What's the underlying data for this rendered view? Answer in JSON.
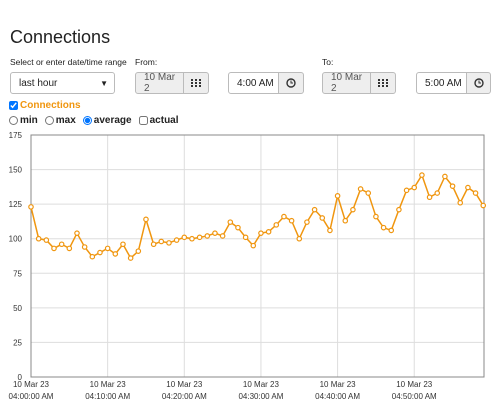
{
  "header": {
    "title": "Connections"
  },
  "form": {
    "range_label": "Select or enter date/time range",
    "range_value": "last hour",
    "from_label": "From:",
    "from_date": "10 Mar 2",
    "from_time": "4:00 AM",
    "to_label": "To:",
    "to_date": "10 Mar 2",
    "to_time": "5:00 AM"
  },
  "series_toggle": {
    "label": "Connections",
    "checked": true
  },
  "modes": {
    "options": [
      "min",
      "max",
      "average",
      "actual"
    ],
    "selected": "average"
  },
  "chart_data": {
    "type": "line",
    "x": [
      0,
      1,
      2,
      3,
      4,
      5,
      6,
      7,
      8,
      9,
      10,
      11,
      12,
      13,
      14,
      15,
      16,
      17,
      18,
      19,
      20,
      21,
      22,
      23,
      24,
      25,
      26,
      27,
      28,
      29,
      30,
      31,
      32,
      33,
      34,
      35,
      36,
      37,
      38,
      39,
      40,
      41,
      42,
      43,
      44,
      45,
      46,
      47,
      48,
      49,
      50,
      51,
      52,
      53,
      54,
      55,
      56,
      57,
      58,
      59
    ],
    "series": [
      {
        "name": "Connections",
        "color": "#f0960f",
        "values": [
          123,
          100,
          99,
          93,
          96,
          93,
          104,
          94,
          87,
          90,
          93,
          89,
          96,
          86,
          91,
          114,
          96,
          98,
          97,
          99,
          101,
          100,
          101,
          102,
          104,
          102,
          112,
          108,
          101,
          95,
          104,
          105,
          110,
          116,
          113,
          100,
          112,
          121,
          115,
          106,
          131,
          113,
          121,
          136,
          133,
          116,
          108,
          106,
          121,
          135,
          137,
          146,
          130,
          133,
          145,
          138,
          126,
          137,
          133,
          124
        ]
      }
    ],
    "xlim": [
      0,
      59.1
    ],
    "xticks": [
      {
        "value": 0,
        "label": "10 Mar 23",
        "time": "04:00:00 AM"
      },
      {
        "value": 10,
        "label": "10 Mar 23",
        "time": "04:10:00 AM"
      },
      {
        "value": 20,
        "label": "10 Mar 23",
        "time": "04:20:00 AM"
      },
      {
        "value": 30,
        "label": "10 Mar 23",
        "time": "04:30:00 AM"
      },
      {
        "value": 40,
        "label": "10 Mar 23",
        "time": "04:40:00 AM"
      },
      {
        "value": 50,
        "label": "10 Mar 23",
        "time": "04:50:00 AM"
      }
    ],
    "ylim": [
      0,
      175
    ],
    "yticks": [
      0,
      25,
      50,
      75,
      100,
      125,
      150,
      175
    ],
    "grid": true
  }
}
